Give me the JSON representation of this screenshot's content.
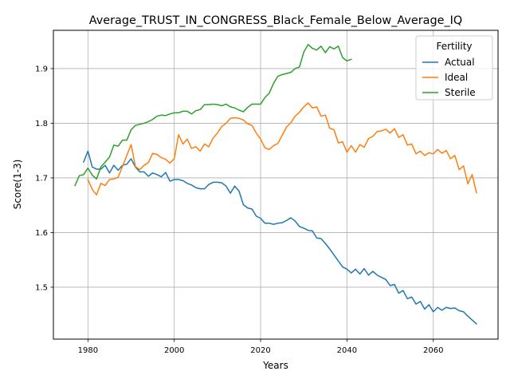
{
  "chart_data": {
    "type": "line",
    "title": "Average_TRUST_IN_CONGRESS_Black_Female_Below_Average_IQ",
    "xlabel": "Years",
    "ylabel": "Score(1-3)",
    "xlim": [
      1972,
      2075
    ],
    "ylim": [
      1.405,
      1.97
    ],
    "x_ticks": [
      1980,
      2000,
      2020,
      2040,
      2060
    ],
    "y_ticks": [
      1.5,
      1.6,
      1.7,
      1.8,
      1.9
    ],
    "grid": true,
    "legend_position": "top-right",
    "legend_title": "Fertility",
    "series": [
      {
        "name": "Actual",
        "color": "#1f77b4",
        "x": [
          1979,
          1980,
          1981,
          1982,
          1983,
          1984,
          1985,
          1986,
          1987,
          1988,
          1989,
          1990,
          1991,
          1992,
          1993,
          1994,
          1995,
          1996,
          1997,
          1998,
          1999,
          2000,
          2001,
          2002,
          2003,
          2004,
          2005,
          2006,
          2007,
          2008,
          2009,
          2010,
          2011,
          2012,
          2013,
          2014,
          2015,
          2016,
          2017,
          2018,
          2019,
          2020,
          2021,
          2022,
          2023,
          2024,
          2025,
          2026,
          2027,
          2028,
          2029,
          2030,
          2031,
          2032,
          2033,
          2034,
          2035,
          2036,
          2037,
          2038,
          2039,
          2040,
          2041,
          2042,
          2043,
          2044,
          2045,
          2046,
          2047,
          2048,
          2049,
          2050,
          2051,
          2052,
          2053,
          2054,
          2055,
          2056,
          2057,
          2058,
          2059,
          2060,
          2061,
          2062,
          2063,
          2064,
          2065,
          2066,
          2067,
          2068,
          2069,
          2070
        ],
        "values": [
          1.729,
          1.749,
          1.72,
          1.716,
          1.716,
          1.723,
          1.709,
          1.723,
          1.714,
          1.723,
          1.725,
          1.735,
          1.72,
          1.711,
          1.711,
          1.703,
          1.709,
          1.706,
          1.702,
          1.71,
          1.694,
          1.697,
          1.697,
          1.695,
          1.69,
          1.687,
          1.682,
          1.68,
          1.68,
          1.688,
          1.692,
          1.692,
          1.691,
          1.685,
          1.672,
          1.685,
          1.676,
          1.651,
          1.645,
          1.643,
          1.63,
          1.626,
          1.617,
          1.617,
          1.615,
          1.617,
          1.618,
          1.622,
          1.627,
          1.621,
          1.611,
          1.608,
          1.604,
          1.603,
          1.59,
          1.589,
          1.58,
          1.57,
          1.559,
          1.548,
          1.537,
          1.533,
          1.526,
          1.533,
          1.524,
          1.534,
          1.522,
          1.529,
          1.522,
          1.518,
          1.514,
          1.503,
          1.505,
          1.489,
          1.494,
          1.479,
          1.482,
          1.469,
          1.474,
          1.46,
          1.468,
          1.455,
          1.463,
          1.458,
          1.463,
          1.461,
          1.462,
          1.457,
          1.455,
          1.447,
          1.44,
          1.433
        ]
      },
      {
        "name": "Ideal",
        "color": "#ff7f0e",
        "x": [
          1980,
          1981,
          1982,
          1983,
          1984,
          1985,
          1986,
          1987,
          1988,
          1989,
          1990,
          1991,
          1992,
          1993,
          1994,
          1995,
          1996,
          1997,
          1998,
          1999,
          2000,
          2001,
          2002,
          2003,
          2004,
          2005,
          2006,
          2007,
          2008,
          2009,
          2010,
          2011,
          2012,
          2013,
          2014,
          2015,
          2016,
          2017,
          2018,
          2019,
          2020,
          2021,
          2022,
          2023,
          2024,
          2025,
          2026,
          2027,
          2028,
          2029,
          2030,
          2031,
          2032,
          2033,
          2034,
          2035,
          2036,
          2037,
          2038,
          2039,
          2040,
          2041,
          2042,
          2043,
          2044,
          2045,
          2046,
          2047,
          2048,
          2049,
          2050,
          2051,
          2052,
          2053,
          2054,
          2055,
          2056,
          2057,
          2058,
          2059,
          2060,
          2061,
          2062,
          2063,
          2064,
          2065,
          2066,
          2067,
          2068,
          2069,
          2070
        ],
        "values": [
          1.697,
          1.679,
          1.669,
          1.69,
          1.686,
          1.697,
          1.698,
          1.701,
          1.721,
          1.741,
          1.761,
          1.721,
          1.715,
          1.723,
          1.728,
          1.745,
          1.743,
          1.737,
          1.734,
          1.727,
          1.735,
          1.779,
          1.762,
          1.771,
          1.754,
          1.757,
          1.749,
          1.762,
          1.757,
          1.773,
          1.782,
          1.794,
          1.8,
          1.809,
          1.81,
          1.809,
          1.806,
          1.799,
          1.796,
          1.782,
          1.771,
          1.755,
          1.752,
          1.759,
          1.763,
          1.778,
          1.793,
          1.801,
          1.813,
          1.82,
          1.83,
          1.837,
          1.828,
          1.83,
          1.813,
          1.815,
          1.791,
          1.788,
          1.764,
          1.766,
          1.747,
          1.759,
          1.747,
          1.761,
          1.756,
          1.772,
          1.776,
          1.785,
          1.786,
          1.789,
          1.782,
          1.79,
          1.774,
          1.779,
          1.76,
          1.762,
          1.744,
          1.749,
          1.741,
          1.746,
          1.744,
          1.752,
          1.745,
          1.75,
          1.735,
          1.741,
          1.715,
          1.722,
          1.689,
          1.706,
          1.673
        ]
      },
      {
        "name": "Sterile",
        "color": "#2ca02c",
        "x": [
          1977,
          1978,
          1979,
          1980,
          1981,
          1982,
          1983,
          1984,
          1985,
          1986,
          1987,
          1988,
          1989,
          1990,
          1991,
          1992,
          1993,
          1994,
          1995,
          1996,
          1997,
          1998,
          1999,
          2000,
          2001,
          2002,
          2003,
          2004,
          2005,
          2006,
          2007,
          2008,
          2009,
          2010,
          2011,
          2012,
          2013,
          2014,
          2015,
          2016,
          2017,
          2018,
          2019,
          2020,
          2021,
          2022,
          2023,
          2024,
          2025,
          2026,
          2027,
          2028,
          2029,
          2030,
          2031,
          2032,
          2033,
          2034,
          2035,
          2036,
          2037,
          2038,
          2039,
          2040,
          2041
        ],
        "values": [
          1.686,
          1.704,
          1.706,
          1.718,
          1.705,
          1.698,
          1.72,
          1.729,
          1.738,
          1.76,
          1.758,
          1.769,
          1.769,
          1.788,
          1.796,
          1.798,
          1.8,
          1.803,
          1.807,
          1.813,
          1.815,
          1.814,
          1.817,
          1.819,
          1.819,
          1.822,
          1.822,
          1.817,
          1.823,
          1.825,
          1.834,
          1.834,
          1.835,
          1.834,
          1.832,
          1.835,
          1.83,
          1.828,
          1.824,
          1.821,
          1.829,
          1.835,
          1.835,
          1.835,
          1.847,
          1.855,
          1.873,
          1.886,
          1.889,
          1.891,
          1.893,
          1.9,
          1.903,
          1.93,
          1.944,
          1.937,
          1.934,
          1.941,
          1.929,
          1.94,
          1.936,
          1.941,
          1.92,
          1.914,
          1.917
        ]
      }
    ]
  }
}
